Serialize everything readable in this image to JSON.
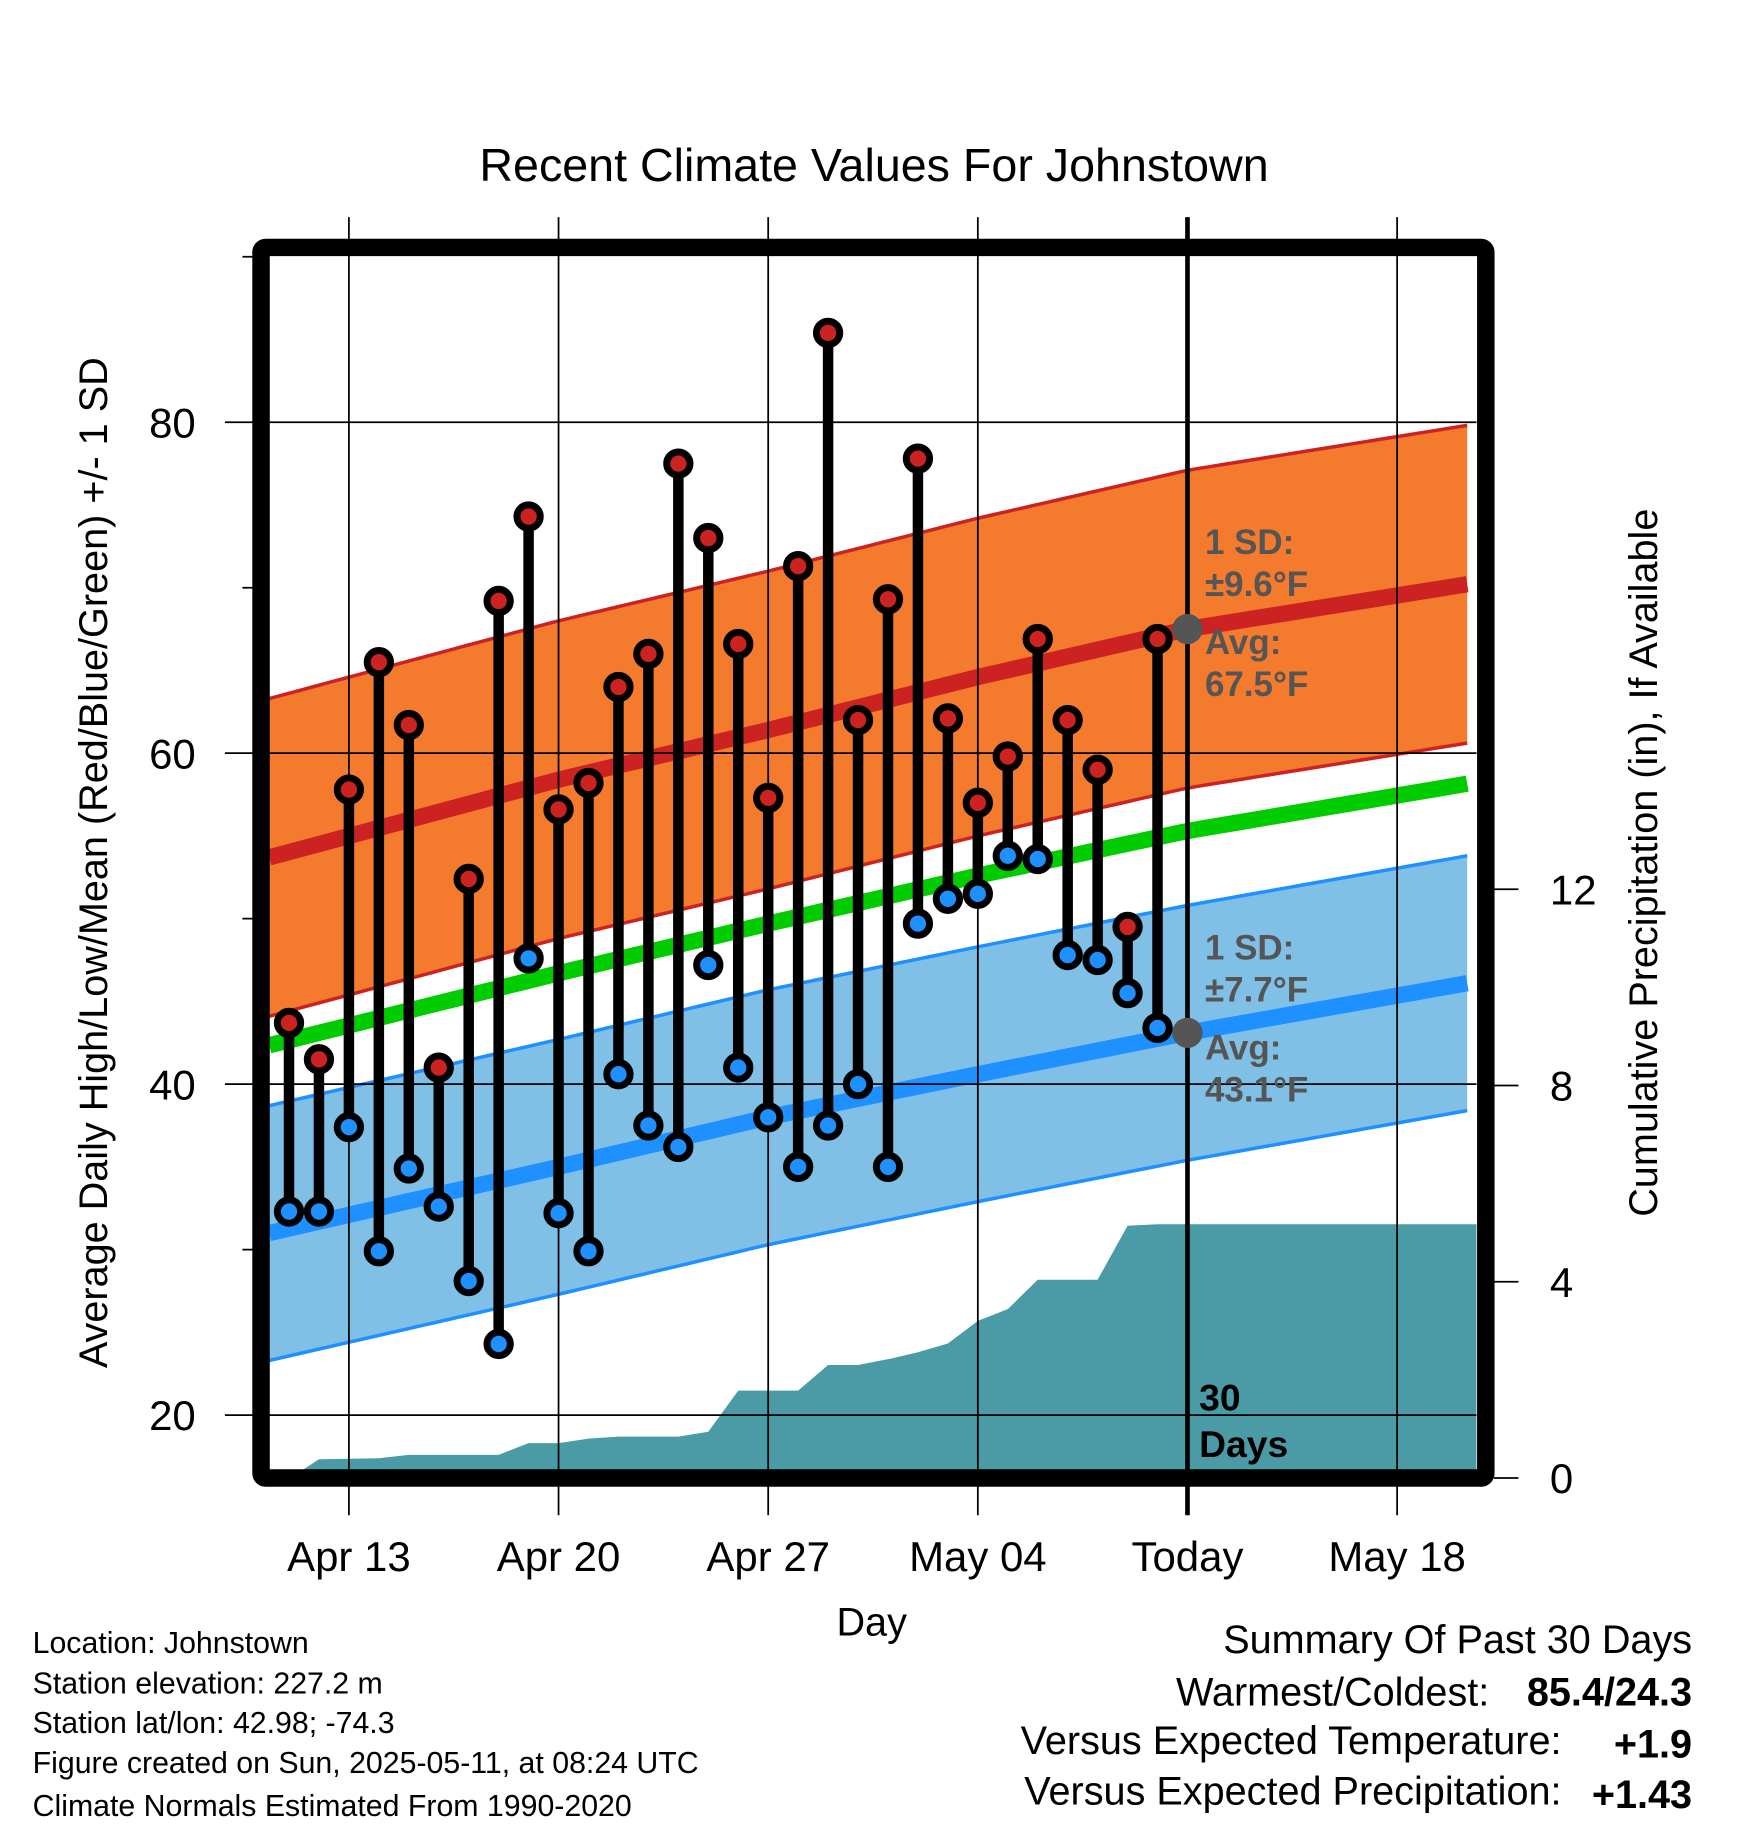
{
  "chart_data": {
    "type": "line",
    "title": "Recent Climate Values For Johnstown",
    "xlabel": "Day",
    "ylabel": "Average Daily High/Low/Mean (Red/Blue/Green) +/- 1 SD",
    "y2label": "Cumulative Precipitation (in), If Available",
    "x_units": "days relative to today (2025-05-11)",
    "xlim": [
      -30.66,
      9.65
    ],
    "ylim": [
      16.2,
      90.6
    ],
    "y2lim": [
      0,
      25
    ],
    "x_ticks": [
      {
        "x": -28,
        "label": "Apr 13"
      },
      {
        "x": -21,
        "label": "Apr 20"
      },
      {
        "x": -14,
        "label": "Apr 27"
      },
      {
        "x": -7,
        "label": "May 04"
      },
      {
        "x": 0,
        "label": "Today"
      },
      {
        "x": 7,
        "label": "May 18"
      }
    ],
    "y_ticks": [
      {
        "y": 20,
        "label": "20"
      },
      {
        "y": 40,
        "label": "40"
      },
      {
        "y": 60,
        "label": "60"
      },
      {
        "y": 80,
        "label": "80"
      }
    ],
    "y_minor_ticks": [
      30,
      50,
      70,
      90
    ],
    "y2_ticks": [
      {
        "y": 0,
        "label": "0"
      },
      {
        "y": 4,
        "label": "4"
      },
      {
        "y": 8,
        "label": "8"
      },
      {
        "y": 12,
        "label": "12"
      }
    ],
    "grid": true,
    "colors": {
      "high": "#cc2222",
      "low": "#1e90ff",
      "mean": "#00cc00",
      "high_band": "#f47a2e",
      "low_band": "#80c0e6",
      "precip": "#4a9ba6",
      "marker": "#555555"
    },
    "daily": {
      "x": [
        -30,
        -29,
        -28,
        -27,
        -26,
        -25,
        -24,
        -23,
        -22,
        -21,
        -20,
        -19,
        -18,
        -17,
        -16,
        -15,
        -14,
        -13,
        -12,
        -11,
        -10,
        -9,
        -8,
        -7,
        -6,
        -5,
        -4,
        -3,
        -2,
        -1
      ],
      "high": [
        43.7,
        41.5,
        57.8,
        65.5,
        61.7,
        41.0,
        52.4,
        69.2,
        74.3,
        56.6,
        58.2,
        64.0,
        66.0,
        77.5,
        73.0,
        66.6,
        57.3,
        71.3,
        85.4,
        62.0,
        69.3,
        77.8,
        62.1,
        57.0,
        59.8,
        66.9,
        62.0,
        59.0,
        49.5,
        66.9
      ],
      "low": [
        32.3,
        32.3,
        37.4,
        29.9,
        34.9,
        32.6,
        28.1,
        24.3,
        47.6,
        32.2,
        29.9,
        40.6,
        37.5,
        36.2,
        47.2,
        41.0,
        38.0,
        35.0,
        37.5,
        40.0,
        35.0,
        49.7,
        51.2,
        51.5,
        53.8,
        53.6,
        47.8,
        47.5,
        45.5,
        43.4
      ]
    },
    "normals": {
      "x": [
        -30.66,
        -21,
        -14,
        -7,
        0,
        9.65
      ],
      "high_mean": [
        53.7,
        58.4,
        61.4,
        64.6,
        67.5,
        70.3
      ],
      "low_mean": [
        31.0,
        35.0,
        38.0,
        40.6,
        43.1,
        46.2
      ],
      "high_sd": 9.6,
      "low_sd": 7.7
    },
    "precip_cumulative": {
      "x": [
        -30.66,
        -29.6,
        -29,
        -27,
        -26,
        -23,
        -22,
        -21,
        -20,
        -19,
        -17,
        -16,
        -15,
        -13,
        -12,
        -11,
        -10,
        -9,
        -8,
        -7,
        -6,
        -5,
        -3,
        -2,
        -1,
        9.65
      ],
      "y": [
        0,
        0,
        0.24,
        0.26,
        0.33,
        0.33,
        0.57,
        0.57,
        0.66,
        0.7,
        0.7,
        0.8,
        1.64,
        1.64,
        2.16,
        2.16,
        2.28,
        2.42,
        2.6,
        3.06,
        3.3,
        3.9,
        3.9,
        5.0,
        5.03,
        5.03
      ]
    },
    "annotations": {
      "high_sd_label": "1 SD:",
      "high_sd_value": "±9.6°F",
      "high_avg_label": "Avg:",
      "high_avg_value": "67.5°F",
      "low_sd_label": "1 SD:",
      "low_sd_value": "±7.7°F",
      "low_avg_label": "Avg:",
      "low_avg_value": "43.1°F",
      "period_line1": "30",
      "period_line2": "Days"
    }
  },
  "info": {
    "location": "Location: Johnstown",
    "elevation": "Station elevation: 227.2 m",
    "latlon": "Station lat/lon: 42.98; -74.3",
    "created": "Figure created on Sun, 2025-05-11, at 08:24 UTC",
    "normals": "Climate Normals Estimated From 1990-2020"
  },
  "summary": {
    "title": "Summary Of Past 30 Days",
    "warmest_label": "Warmest/Coldest:",
    "warmest_value": "85.4/24.3",
    "temp_label": "Versus Expected Temperature:",
    "temp_value": "+1.9",
    "precip_label": "Versus Expected Precipitation:",
    "precip_value": "+1.43",
    "temp_color": "#cc2222",
    "precip_color": "#00bb00"
  }
}
